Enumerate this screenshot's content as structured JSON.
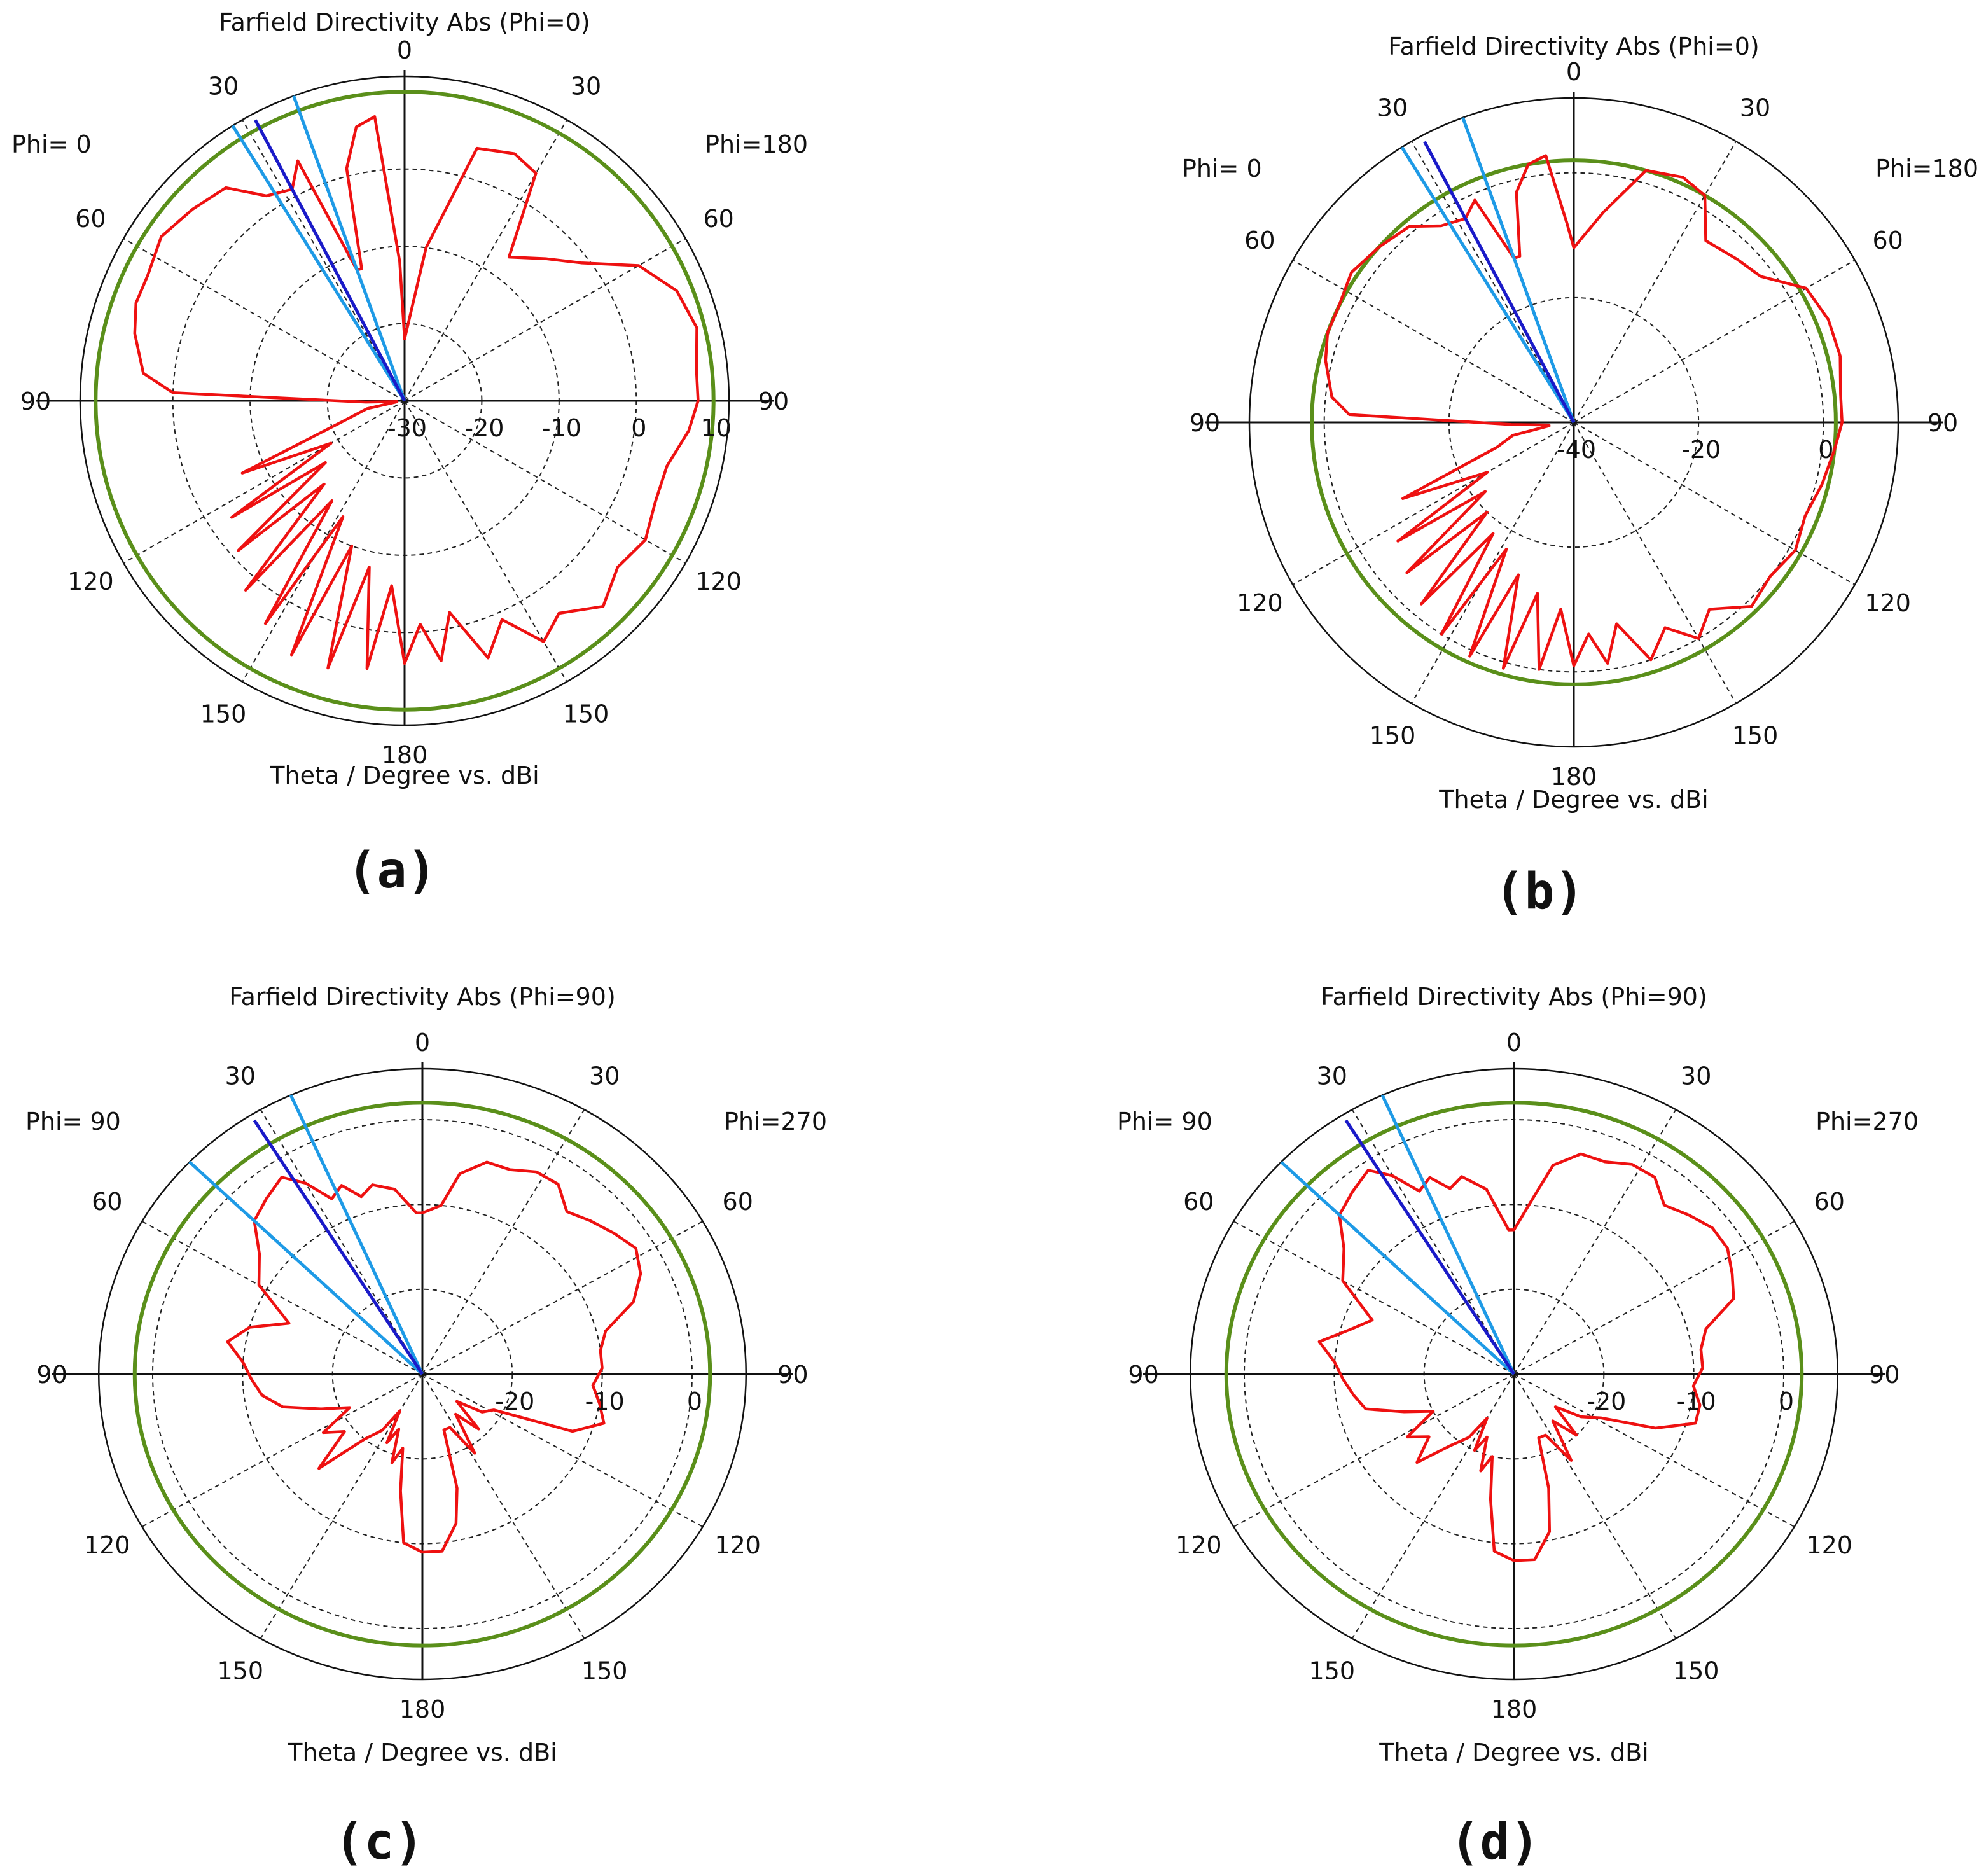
{
  "colors": {
    "pattern": "#ee1111",
    "reference_circle": "#5a8f1a",
    "main_lobe": "#1a1ac8",
    "beamwidth": "#1e9ae6",
    "grid": "#222222"
  },
  "chart_data": [
    {
      "panel": "(a)",
      "type": "polar",
      "title": "Farfield Directivity Abs (Phi=0)",
      "xlabel": "Theta / Degree vs. dBi",
      "phi_left": "Phi=  0",
      "phi_right": "Phi=180",
      "theta_labels": [
        "0",
        "30",
        "60",
        "90",
        "120",
        "150",
        "180",
        "150",
        "120",
        "90",
        "60",
        "30"
      ],
      "radial_ticks": [
        "-30",
        "-20",
        "-10",
        "0",
        "10"
      ],
      "rmin_dbi": -30,
      "rmax_dbi": 12,
      "reference_level_dbi": 10,
      "main_lobe_deg": -28,
      "beamwidth_deg": [
        -32,
        -20
      ],
      "pattern": {
        "theta": [
          0,
          8,
          16,
          24,
          30,
          36,
          45,
          52,
          60,
          68,
          76,
          84,
          90,
          96,
          104,
          112,
          120,
          128,
          136,
          144,
          150,
          156,
          162,
          168,
          172,
          176,
          180,
          184,
          188,
          192,
          196,
          200,
          204,
          208,
          212,
          216,
          220,
          224,
          228,
          232,
          236,
          240,
          246,
          252,
          258,
          262,
          264,
          268,
          272,
          276,
          284,
          290,
          296,
          304,
          312,
          320,
          326,
          332,
          336,
          340,
          342,
          346,
          350,
          354,
          358
        ],
        "dbi": [
          -22,
          -10,
          4,
          5,
          4,
          -7,
          -4,
          -1,
          5,
          8,
          9,
          8,
          8,
          7,
          5,
          5,
          6,
          5,
          7,
          4,
          6,
          1,
          5,
          -2,
          4,
          -1,
          4,
          -6,
          5,
          -8,
          6,
          -10,
          6,
          -13,
          4,
          -14,
          2,
          -15,
          -1,
          -17,
          -3,
          -19,
          -7,
          -22,
          -25,
          -29,
          -29,
          -25,
          0,
          4,
          6,
          7,
          7,
          8,
          7,
          6,
          2,
          1,
          4,
          -12,
          -12,
          1,
          6,
          7,
          -12
        ]
      }
    },
    {
      "panel": "(b)",
      "type": "polar",
      "title": "Farfield Directivity Abs (Phi=0)",
      "xlabel": "Theta / Degree vs. dBi",
      "phi_left": "Phi=  0",
      "phi_right": "Phi=180",
      "theta_labels": [
        "0",
        "30",
        "60",
        "90",
        "120",
        "150",
        "180",
        "150",
        "120",
        "90",
        "60",
        "30"
      ],
      "radial_ticks": [
        "-40",
        "-20",
        "0"
      ],
      "rmin_dbi": -40,
      "rmax_dbi": 12,
      "reference_level_dbi": 2,
      "main_lobe_deg": -28,
      "beamwidth_deg": [
        -32,
        -20
      ],
      "pattern": {
        "theta": [
          0,
          8,
          16,
          24,
          30,
          36,
          45,
          52,
          60,
          68,
          76,
          84,
          90,
          96,
          104,
          112,
          120,
          128,
          136,
          144,
          150,
          156,
          162,
          168,
          172,
          176,
          180,
          184,
          188,
          192,
          196,
          200,
          204,
          208,
          212,
          216,
          220,
          224,
          228,
          232,
          236,
          240,
          246,
          252,
          258,
          262,
          264,
          268,
          272,
          276,
          284,
          290,
          296,
          304,
          312,
          320,
          326,
          332,
          336,
          340,
          342,
          346,
          350,
          354,
          358
        ],
        "dbi": [
          -12,
          -6,
          2,
          3,
          2,
          -4,
          -3,
          -2,
          3,
          4,
          4,
          3,
          3,
          2,
          1,
          0,
          1,
          0,
          1,
          -3,
          0,
          -4,
          0,
          -7,
          -1,
          -6,
          -1,
          -10,
          0,
          -12,
          1,
          -14,
          1,
          -17,
          0,
          -18,
          -2,
          -20,
          -4,
          -22,
          -6,
          -24,
          -10,
          -27,
          -30,
          -36,
          -36,
          -30,
          -4,
          -1,
          1,
          2,
          2,
          3,
          2,
          1,
          -2,
          -3,
          -1,
          -12,
          -12,
          -2,
          2,
          3,
          -8
        ]
      }
    },
    {
      "panel": "(c)",
      "type": "polar",
      "title": "Farfield Directivity Abs (Phi=90)",
      "xlabel": "Theta / Degree vs. dBi",
      "phi_left": "Phi= 90",
      "phi_right": "Phi=270",
      "theta_labels": [
        "0",
        "30",
        "60",
        "90",
        "120",
        "150",
        "180",
        "150",
        "120",
        "90",
        "60",
        "30"
      ],
      "radial_ticks": [
        "-20",
        "-10",
        "0"
      ],
      "rmin_dbi": -30,
      "rmax_dbi": 6,
      "reference_level_dbi": 2,
      "main_lobe_deg": -32,
      "beamwidth_deg": [
        -46,
        -24
      ],
      "pattern": {
        "theta": [
          0,
          6,
          10,
          16,
          22,
          28,
          34,
          40,
          46,
          52,
          58,
          64,
          70,
          76,
          82,
          88,
          94,
          100,
          106,
          112,
          118,
          124,
          130,
          136,
          142,
          148,
          154,
          160,
          164,
          168,
          174,
          180,
          186,
          190,
          194,
          198,
          202,
          206,
          210,
          214,
          220,
          226,
          232,
          238,
          244,
          250,
          256,
          262,
          268,
          274,
          280,
          286,
          292,
          300,
          308,
          314,
          320,
          326,
          330,
          334,
          338,
          342,
          346,
          352,
          358
        ],
        "dbi": [
          -11,
          -10,
          -6,
          -4,
          -4,
          -3,
          -3,
          -5,
          -4,
          -3,
          -2,
          -3,
          -5,
          -9,
          -10,
          -10,
          -11,
          -10,
          -9,
          -12,
          -21,
          -22,
          -25,
          -21,
          -24,
          -19,
          -23,
          -23,
          -16,
          -12,
          -9,
          -9,
          -10,
          -16,
          -21,
          -19,
          -23,
          -21,
          -25,
          -22,
          -20,
          -14,
          -19,
          -17,
          -21,
          -18,
          -14,
          -12,
          -11,
          -10,
          -8,
          -10,
          -14,
          -9,
          -7,
          -4,
          -3,
          -2,
          -4,
          -7,
          -6,
          -8,
          -7,
          -8,
          -11
        ]
      }
    },
    {
      "panel": "(d)",
      "type": "polar",
      "title": "Farfield Directivity Abs (Phi=90)",
      "xlabel": "Theta / Degree vs. dBi",
      "phi_left": "Phi= 90",
      "phi_right": "Phi=270",
      "theta_labels": [
        "0",
        "30",
        "60",
        "90",
        "120",
        "150",
        "180",
        "150",
        "120",
        "90",
        "60",
        "30"
      ],
      "radial_ticks": [
        "-20",
        "-10",
        "0"
      ],
      "rmin_dbi": -30,
      "rmax_dbi": 6,
      "reference_level_dbi": 2,
      "main_lobe_deg": -32,
      "beamwidth_deg": [
        -46,
        -24
      ],
      "pattern": {
        "theta": [
          0,
          6,
          10,
          16,
          22,
          28,
          34,
          40,
          46,
          52,
          58,
          64,
          70,
          76,
          82,
          88,
          94,
          100,
          106,
          112,
          118,
          124,
          130,
          136,
          142,
          148,
          154,
          160,
          164,
          168,
          174,
          180,
          186,
          190,
          194,
          198,
          202,
          206,
          210,
          214,
          220,
          226,
          232,
          238,
          244,
          250,
          256,
          262,
          268,
          274,
          280,
          286,
          292,
          300,
          308,
          314,
          320,
          326,
          330,
          334,
          338,
          342,
          346,
          352,
          358
        ],
        "dbi": [
          -13,
          -9,
          -5,
          -3,
          -3,
          -2,
          -2,
          -4,
          -3,
          -2,
          -2,
          -3,
          -4,
          -8,
          -9,
          -9,
          -10,
          -9,
          -9,
          -13,
          -19,
          -21,
          -24,
          -20,
          -23,
          -18,
          -22,
          -22,
          -16,
          -11,
          -8,
          -8,
          -9,
          -15,
          -20,
          -18,
          -22,
          -20,
          -24,
          -21,
          -19,
          -15,
          -18,
          -16,
          -20,
          -17,
          -13,
          -12,
          -11,
          -10,
          -8,
          -11,
          -13,
          -8,
          -6,
          -3,
          -2,
          -1,
          -3,
          -6,
          -5,
          -7,
          -6,
          -8,
          -13
        ]
      }
    }
  ],
  "panels": [
    {
      "label": "(a)"
    },
    {
      "label": "(b)"
    },
    {
      "label": "(c)"
    },
    {
      "label": "(d)"
    }
  ]
}
